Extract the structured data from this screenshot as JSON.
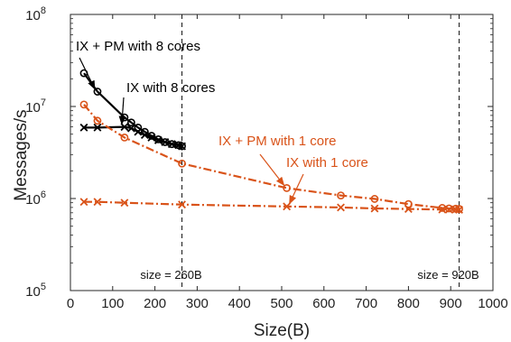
{
  "chart_data": {
    "type": "line",
    "title": "",
    "xlabel": "Size(B)",
    "ylabel": "Messages/s",
    "xlim": [
      0,
      1000
    ],
    "ylim": [
      100000,
      100000000
    ],
    "yscale": "log",
    "grid": false,
    "x_ticks": [
      "0",
      "100",
      "200",
      "300",
      "400",
      "500",
      "600",
      "700",
      "800",
      "900",
      "1000"
    ],
    "y_ticks": [
      {
        "base": "10",
        "exp": "5"
      },
      {
        "base": "10",
        "exp": "6"
      },
      {
        "base": "10",
        "exp": "7"
      },
      {
        "base": "10",
        "exp": "8"
      }
    ],
    "colors": {
      "black": "#000000",
      "orange": "#d95319"
    },
    "series": [
      {
        "name": "IX + PM with 8 cores",
        "color": "#000000",
        "marker": "circle",
        "dash": "solid",
        "x": [
          32,
          64,
          128,
          144,
          160,
          176,
          192,
          208,
          224,
          240,
          256,
          264
        ],
        "y": [
          23000000,
          14500000,
          7600000,
          6700000,
          5900000,
          5300000,
          4800000,
          4400000,
          4100000,
          3900000,
          3800000,
          3700000
        ]
      },
      {
        "name": "IX with 8 cores",
        "color": "#000000",
        "marker": "x",
        "dash": "solid",
        "x": [
          32,
          64,
          128,
          144,
          160,
          176,
          192,
          208,
          224,
          240,
          256,
          264
        ],
        "y": [
          5900000,
          5900000,
          6000000,
          5800000,
          5300000,
          4900000,
          4600000,
          4300000,
          4100000,
          3900000,
          3800000,
          3700000
        ]
      },
      {
        "name": "IX + PM with 1 core",
        "color": "#d95319",
        "marker": "circle",
        "dash": "dashdot",
        "x": [
          32,
          64,
          128,
          264,
          512,
          640,
          720,
          800,
          880,
          896,
          912,
          920
        ],
        "y": [
          10500000,
          7000000,
          4600000,
          2400000,
          1300000,
          1080000,
          990000,
          870000,
          790000,
          780000,
          775000,
          770000
        ]
      },
      {
        "name": "IX with 1 core",
        "color": "#d95319",
        "marker": "x",
        "dash": "dashdot",
        "x": [
          32,
          64,
          128,
          264,
          512,
          640,
          720,
          800,
          880,
          896,
          912,
          920
        ],
        "y": [
          920000,
          920000,
          900000,
          860000,
          820000,
          800000,
          780000,
          770000,
          760000,
          760000,
          760000,
          755000
        ]
      }
    ],
    "annotations": [
      {
        "id": "ann-ix-pm-8",
        "text": "IX + PM with 8 cores",
        "series": 0,
        "target_index": 1,
        "color": "#000000"
      },
      {
        "id": "ann-ix-8",
        "text": "IX with 8 cores",
        "series": 1,
        "target_index": 2,
        "color": "#000000"
      },
      {
        "id": "ann-ix-pm-1",
        "text": "IX + PM with 1 core",
        "series": 2,
        "target_index": 4,
        "color": "#d95319"
      },
      {
        "id": "ann-ix-1",
        "text": "IX with 1 core",
        "series": 3,
        "target_index": 4,
        "color": "#d95319"
      }
    ],
    "vlines": [
      {
        "x": 264,
        "label": "size = 260B"
      },
      {
        "x": 920,
        "label": "size = 920B"
      }
    ]
  }
}
